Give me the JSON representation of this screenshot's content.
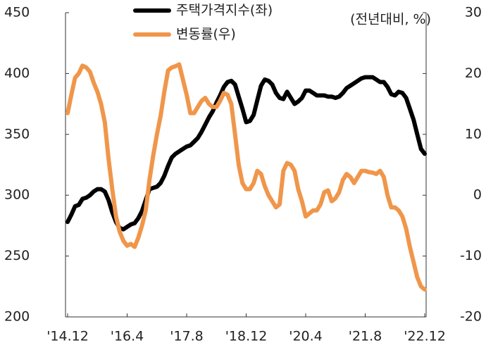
{
  "chart_data": {
    "type": "line",
    "legend_labels": [
      "주택가격지수(좌)",
      "변동률(우)"
    ],
    "y2_label": "(전년대비, %)",
    "categories": [
      "'14.12",
      null,
      null,
      null,
      null,
      null,
      null,
      null,
      null,
      null,
      null,
      null,
      null,
      null,
      null,
      null,
      "'16.4",
      null,
      null,
      null,
      null,
      null,
      null,
      null,
      null,
      null,
      null,
      null,
      null,
      null,
      null,
      null,
      "'17.8",
      null,
      null,
      null,
      null,
      null,
      null,
      null,
      null,
      null,
      null,
      null,
      null,
      null,
      null,
      null,
      "'18.12",
      null,
      null,
      null,
      null,
      null,
      null,
      null,
      null,
      null,
      null,
      null,
      null,
      null,
      null,
      null,
      "'20.4",
      null,
      null,
      null,
      null,
      null,
      null,
      null,
      null,
      null,
      null,
      null,
      null,
      null,
      null,
      null,
      "'21.8",
      null,
      null,
      null,
      null,
      null,
      null,
      null,
      null,
      null,
      null,
      null,
      null,
      null,
      null,
      null,
      "'22.12"
    ],
    "series": [
      {
        "name": "주택가격지수(좌)",
        "color": "#000000",
        "axis": "y",
        "values": [
          278,
          284,
          291,
          292,
          297,
          298,
          300,
          303,
          305,
          305,
          303,
          296,
          286,
          278,
          273,
          272,
          274,
          276,
          277,
          281,
          287,
          296,
          305,
          306,
          307,
          310,
          316,
          324,
          331,
          334,
          336,
          338,
          340,
          341,
          344,
          347,
          352,
          358,
          364,
          369,
          376,
          382,
          389,
          393,
          394,
          391,
          381,
          371,
          360,
          361,
          366,
          378,
          390,
          395,
          394,
          391,
          384,
          380,
          379,
          385,
          380,
          375,
          377,
          380,
          386,
          386,
          384,
          382,
          382,
          382,
          381,
          381,
          380,
          381,
          384,
          388,
          390,
          392,
          394,
          396,
          397,
          397,
          397,
          395,
          393,
          393,
          389,
          383,
          382,
          385,
          384,
          380,
          371,
          362,
          350,
          338,
          334
        ]
      },
      {
        "name": "변동률(우)",
        "color": "#f0964a",
        "axis": "y2",
        "values": [
          13.5,
          16.5,
          19.3,
          20,
          21.3,
          21,
          20.3,
          18.5,
          17,
          15,
          12,
          6,
          1,
          -3.5,
          -6,
          -7.5,
          -8.3,
          -8,
          -8.5,
          -7,
          -5,
          -2.5,
          2.5,
          6.5,
          10,
          13,
          17,
          20.5,
          21,
          21.2,
          21.5,
          19,
          16.5,
          13.5,
          13.5,
          14.5,
          15.5,
          16,
          15,
          14.5,
          14.5,
          15.5,
          16.8,
          16.5,
          15,
          10,
          5,
          2,
          1,
          1,
          2,
          4,
          3.5,
          1.5,
          0,
          -1,
          -2,
          -1.5,
          4,
          5.3,
          5,
          4,
          1,
          -1,
          -3.5,
          -3,
          -2.5,
          -2.5,
          -1.5,
          0.5,
          0.8,
          -1,
          -0.5,
          0.5,
          2.5,
          3.5,
          3,
          2,
          3,
          4,
          4,
          3.8,
          3.7,
          3.5,
          4,
          3,
          0,
          -2,
          -2,
          -2.5,
          -3.5,
          -5.5,
          -8.5,
          -11,
          -13.5,
          -15,
          -15.5
        ]
      }
    ],
    "ylim": [
      200,
      450
    ],
    "yticks": [
      200,
      250,
      300,
      350,
      400,
      450
    ],
    "y2lim": [
      -20,
      30
    ],
    "y2ticks": [
      -20,
      -10,
      0,
      10,
      20,
      30
    ],
    "grid": false
  }
}
